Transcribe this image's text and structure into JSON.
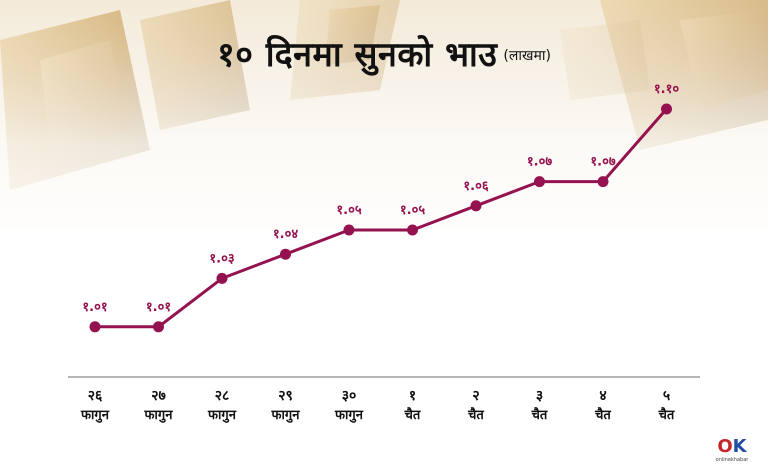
{
  "title": "१० दिनमा सुनको भाउ",
  "unit": "(लाखमा)",
  "colors": {
    "line": "#94124f",
    "text": "#111111",
    "value_label": "#94124f",
    "baseline": "#6b6b6b",
    "logo_o": "#c2272d",
    "logo_k": "#1e4fa3"
  },
  "chart_data": {
    "type": "line",
    "categories": [
      [
        "२६",
        "फागुन"
      ],
      [
        "२७",
        "फागुन"
      ],
      [
        "२८",
        "फागुन"
      ],
      [
        "२९",
        "फागुन"
      ],
      [
        "३०",
        "फागुन"
      ],
      [
        "१",
        "चैत"
      ],
      [
        "२",
        "चैत"
      ],
      [
        "३",
        "चैत"
      ],
      [
        "४",
        "चैत"
      ],
      [
        "५",
        "चैत"
      ]
    ],
    "values": [
      1.01,
      1.01,
      1.03,
      1.04,
      1.05,
      1.05,
      1.06,
      1.07,
      1.07,
      1.1
    ],
    "data_labels": [
      "१.०१",
      "१.०१",
      "१.०३",
      "१.०४",
      "१.०५",
      "१.०५",
      "१.०६",
      "१.०७",
      "१.०७",
      "१.१०"
    ],
    "ylim": [
      1.0,
      1.1
    ],
    "grid": false,
    "legend": "none"
  },
  "logo": {
    "mark_o": "O",
    "mark_k": "K",
    "caption": "onlinekhabar"
  }
}
